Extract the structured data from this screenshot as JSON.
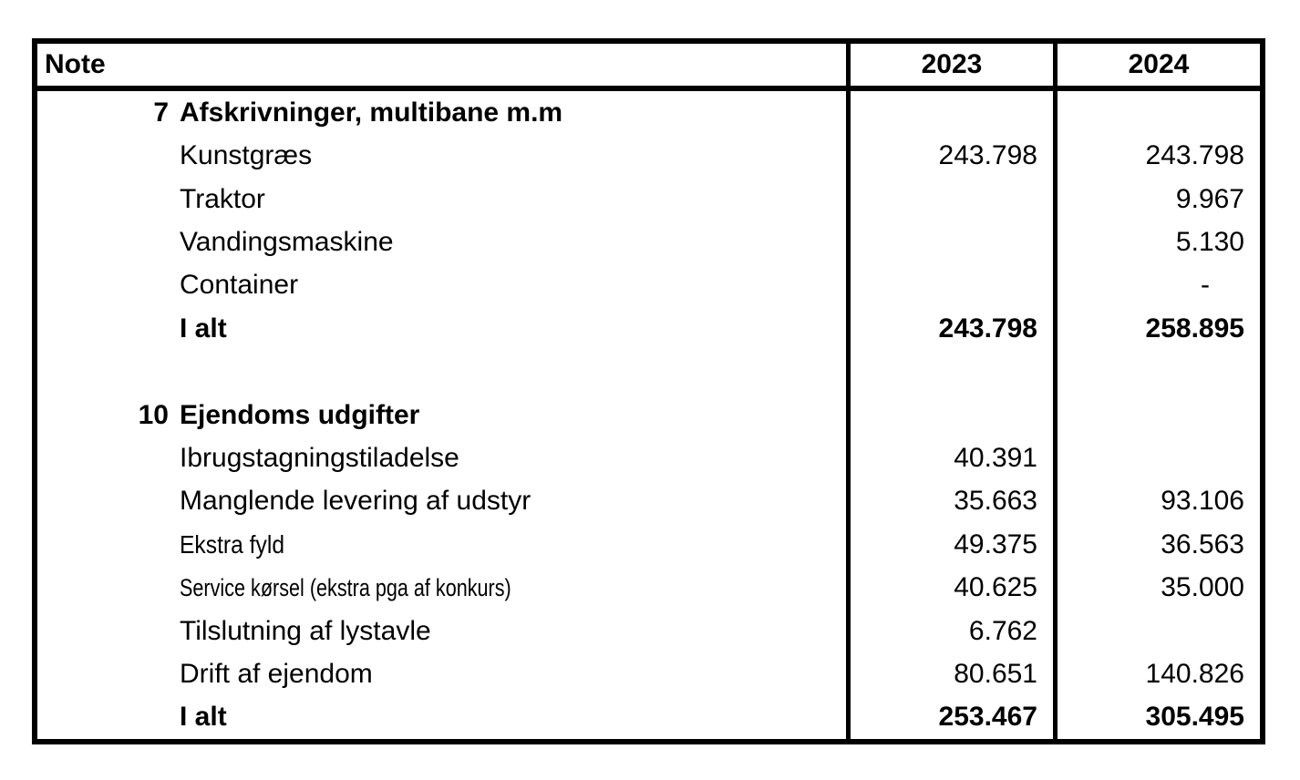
{
  "table": {
    "header": {
      "note": "Note",
      "col2023": "2023",
      "col2024": "2024"
    },
    "rows": [
      {
        "note": "7",
        "label": "Afskrivninger, multibane m.m",
        "y2023": "",
        "y2024": ""
      },
      {
        "note": "",
        "label": "Kunstgræs",
        "y2023": "243.798",
        "y2024": "243.798"
      },
      {
        "note": "",
        "label": "Traktor",
        "y2023": "",
        "y2024": "9.967"
      },
      {
        "note": "",
        "label": "Vandingsmaskine",
        "y2023": "",
        "y2024": "5.130"
      },
      {
        "note": "",
        "label": "Container",
        "y2023": "",
        "y2024": "-"
      },
      {
        "note": "",
        "label": "I alt",
        "y2023": "243.798",
        "y2024": "258.895"
      },
      {
        "note": "",
        "label": "",
        "y2023": "",
        "y2024": ""
      },
      {
        "note": "10",
        "label": "Ejendoms udgifter",
        "y2023": "",
        "y2024": ""
      },
      {
        "note": "",
        "label": "Ibrugstagningstiladelse",
        "y2023": "40.391",
        "y2024": ""
      },
      {
        "note": "",
        "label": "Manglende levering af udstyr",
        "y2023": "35.663",
        "y2024": "93.106"
      },
      {
        "note": "",
        "label": "Ekstra fyld",
        "y2023": "49.375",
        "y2024": "36.563"
      },
      {
        "note": "",
        "label": "Service kørsel (ekstra pga af konkurs)",
        "y2023": "40.625",
        "y2024": "35.000"
      },
      {
        "note": "",
        "label": "Tilslutning af lystavle",
        "y2023": "6.762",
        "y2024": ""
      },
      {
        "note": "",
        "label": "Drift af ejendom",
        "y2023": "80.651",
        "y2024": "140.826"
      },
      {
        "note": "",
        "label": "I alt",
        "y2023": "253.467",
        "y2024": "305.495"
      }
    ],
    "colors": {
      "border": "#000000",
      "background": "#ffffff",
      "text": "#000000"
    }
  }
}
